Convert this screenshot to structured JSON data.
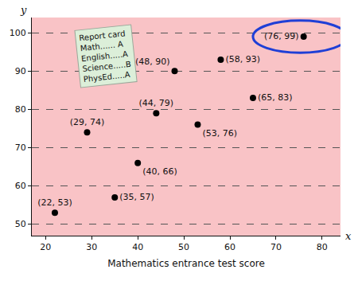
{
  "chart_data": {
    "type": "scatter",
    "xlabel": "Mathematics entrance test score",
    "axis_letters": {
      "x": "x",
      "y": "y"
    },
    "x": [
      22,
      29,
      35,
      40,
      44,
      48,
      53,
      58,
      65,
      76
    ],
    "values": [
      53,
      74,
      57,
      66,
      79,
      90,
      76,
      93,
      83,
      99
    ],
    "value_labels": [
      "(22, 53)",
      "(29, 74)",
      "(35, 57)",
      "(40, 66)",
      "(44, 79)",
      "(48, 90)",
      "(53, 76)",
      "(58, 93)",
      "(65, 83)",
      "(76, 99)"
    ],
    "data_labels": true,
    "color": "#000000",
    "marker": "circle",
    "xlim": [
      17,
      84
    ],
    "xticks": [
      20,
      30,
      40,
      50,
      60,
      70,
      80
    ],
    "ylim": [
      47,
      104
    ],
    "yticks": [
      50,
      60,
      70,
      80,
      90,
      100
    ],
    "grid": true,
    "highlight": [
      76,
      99
    ],
    "annotations": [
      "Report card",
      "Math...... A",
      "English.....A",
      "Science.....B",
      "PhysEd.....A"
    ]
  }
}
